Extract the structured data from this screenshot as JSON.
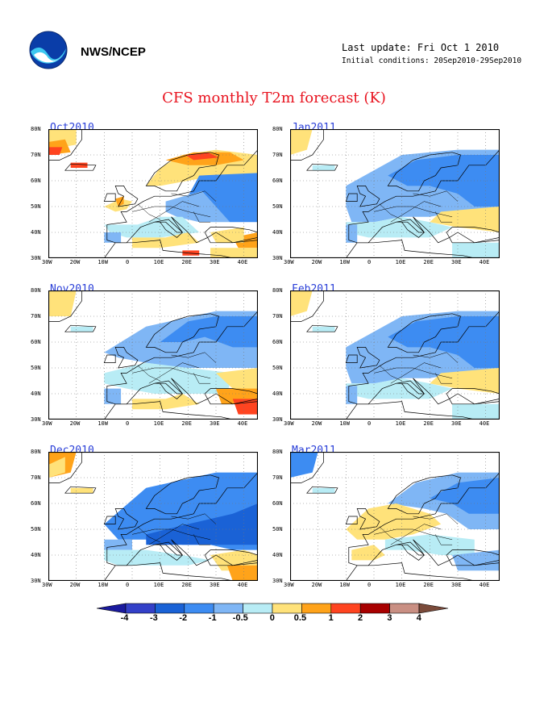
{
  "header": {
    "org": "NWS/NCEP",
    "last_update": "Last update: Fri Oct 1 2010",
    "initial_conditions": "Initial conditions: 20Sep2010-29Sep2010",
    "title": "CFS monthly T2m forecast (K)"
  },
  "lat_labels": [
    "80N",
    "70N",
    "60N",
    "50N",
    "40N",
    "30N"
  ],
  "lon_labels": [
    "30W",
    "20W",
    "10W",
    "0",
    "10E",
    "20E",
    "30E",
    "40E"
  ],
  "panels": [
    {
      "label": "Oct2010",
      "pattern": "warm_north_cool_east"
    },
    {
      "label": "Jan2011",
      "pattern": "cool_widespread"
    },
    {
      "label": "Nov2010",
      "pattern": "cool_north_warm_southeast"
    },
    {
      "label": "Feb2011",
      "pattern": "cool_widespread"
    },
    {
      "label": "Dec2010",
      "pattern": "strong_cool"
    },
    {
      "label": "Mar2011",
      "pattern": "mixed"
    }
  ],
  "legend": {
    "labels": [
      "-4",
      "-3",
      "-2",
      "-1",
      "-0.5",
      "0",
      "0.5",
      "1",
      "2",
      "3",
      "4"
    ],
    "colors": [
      "#1a1a9e",
      "#3340c8",
      "#1a62d6",
      "#3d8cf2",
      "#7fb6f5",
      "#b8ecf5",
      "#ffe27a",
      "#ffa31a",
      "#ff4420",
      "#a80000",
      "#c98f83",
      "#7a4a3a"
    ]
  },
  "colors": {
    "title": "#e8121e",
    "panel_label": "#2a3fd8",
    "land": "#ffffff",
    "ocean": "#ffffff"
  }
}
